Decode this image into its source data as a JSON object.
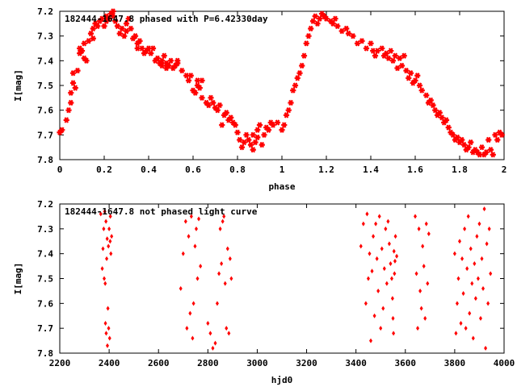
{
  "colors": {
    "points": "#ff0000",
    "axes": "#000000"
  },
  "chart_data": [
    {
      "type": "scatter",
      "title": "182444-1647.8 phased with P=6.42330day",
      "xlabel": "phase",
      "ylabel": "I[mag]",
      "xlim": [
        0,
        2
      ],
      "ylim": [
        7.2,
        7.8
      ],
      "y_inverted": true,
      "grid": false,
      "marker": "star",
      "xticks": [
        "0",
        "0.2",
        "0.4",
        "0.6",
        "0.8",
        "1",
        "1.2",
        "1.4",
        "1.6",
        "1.8",
        "2"
      ],
      "yticks": [
        "7.2",
        "7.3",
        "7.4",
        "7.5",
        "7.6",
        "7.7",
        "7.8"
      ],
      "points": [
        [
          0.0,
          7.69
        ],
        [
          0.01,
          7.68
        ],
        [
          0.03,
          7.64
        ],
        [
          0.04,
          7.6
        ],
        [
          0.05,
          7.57
        ],
        [
          0.05,
          7.53
        ],
        [
          0.06,
          7.49
        ],
        [
          0.06,
          7.45
        ],
        [
          0.07,
          7.51
        ],
        [
          0.08,
          7.44
        ],
        [
          0.09,
          7.37
        ],
        [
          0.09,
          7.35
        ],
        [
          0.1,
          7.36
        ],
        [
          0.11,
          7.33
        ],
        [
          0.11,
          7.39
        ],
        [
          0.12,
          7.4
        ],
        [
          0.13,
          7.32
        ],
        [
          0.14,
          7.29
        ],
        [
          0.15,
          7.27
        ],
        [
          0.15,
          7.31
        ],
        [
          0.16,
          7.25
        ],
        [
          0.17,
          7.26
        ],
        [
          0.18,
          7.24
        ],
        [
          0.19,
          7.23
        ],
        [
          0.2,
          7.26
        ],
        [
          0.21,
          7.24
        ],
        [
          0.21,
          7.22
        ],
        [
          0.22,
          7.23
        ],
        [
          0.23,
          7.21
        ],
        [
          0.24,
          7.22
        ],
        [
          0.24,
          7.2
        ],
        [
          0.25,
          7.24
        ],
        [
          0.26,
          7.26
        ],
        [
          0.27,
          7.29
        ],
        [
          0.28,
          7.27
        ],
        [
          0.29,
          7.3
        ],
        [
          0.3,
          7.28
        ],
        [
          0.3,
          7.25
        ],
        [
          0.31,
          7.23
        ],
        [
          0.32,
          7.27
        ],
        [
          0.33,
          7.31
        ],
        [
          0.34,
          7.3
        ],
        [
          0.35,
          7.33
        ],
        [
          0.35,
          7.35
        ],
        [
          0.36,
          7.32
        ],
        [
          0.37,
          7.35
        ],
        [
          0.38,
          7.37
        ],
        [
          0.39,
          7.36
        ],
        [
          0.4,
          7.35
        ],
        [
          0.41,
          7.37
        ],
        [
          0.42,
          7.35
        ],
        [
          0.43,
          7.4
        ],
        [
          0.44,
          7.39
        ],
        [
          0.45,
          7.41
        ],
        [
          0.46,
          7.4
        ],
        [
          0.46,
          7.42
        ],
        [
          0.47,
          7.38
        ],
        [
          0.48,
          7.41
        ],
        [
          0.48,
          7.43
        ],
        [
          0.49,
          7.42
        ],
        [
          0.5,
          7.4
        ],
        [
          0.51,
          7.43
        ],
        [
          0.52,
          7.42
        ],
        [
          0.53,
          7.4
        ],
        [
          0.53,
          7.41
        ],
        [
          0.55,
          7.44
        ],
        [
          0.57,
          7.46
        ],
        [
          0.58,
          7.48
        ],
        [
          0.59,
          7.46
        ],
        [
          0.6,
          7.52
        ],
        [
          0.61,
          7.53
        ],
        [
          0.62,
          7.5
        ],
        [
          0.62,
          7.48
        ],
        [
          0.63,
          7.51
        ],
        [
          0.64,
          7.48
        ],
        [
          0.64,
          7.55
        ],
        [
          0.66,
          7.57
        ],
        [
          0.67,
          7.58
        ],
        [
          0.68,
          7.55
        ],
        [
          0.69,
          7.57
        ],
        [
          0.7,
          7.59
        ],
        [
          0.71,
          7.6
        ],
        [
          0.72,
          7.58
        ],
        [
          0.73,
          7.66
        ],
        [
          0.74,
          7.62
        ],
        [
          0.75,
          7.61
        ],
        [
          0.76,
          7.64
        ],
        [
          0.77,
          7.63
        ],
        [
          0.78,
          7.65
        ],
        [
          0.79,
          7.66
        ],
        [
          0.8,
          7.69
        ],
        [
          0.81,
          7.72
        ],
        [
          0.82,
          7.75
        ],
        [
          0.83,
          7.73
        ],
        [
          0.84,
          7.7
        ],
        [
          0.85,
          7.72
        ],
        [
          0.86,
          7.74
        ],
        [
          0.87,
          7.7
        ],
        [
          0.87,
          7.76
        ],
        [
          0.88,
          7.73
        ],
        [
          0.89,
          7.68
        ],
        [
          0.89,
          7.71
        ],
        [
          0.9,
          7.66
        ],
        [
          0.91,
          7.74
        ],
        [
          0.92,
          7.7
        ],
        [
          0.93,
          7.67
        ],
        [
          0.94,
          7.68
        ],
        [
          0.95,
          7.65
        ],
        [
          0.96,
          7.66
        ],
        [
          0.98,
          7.65
        ],
        [
          1.0,
          7.68
        ],
        [
          1.01,
          7.66
        ],
        [
          1.02,
          7.62
        ],
        [
          1.03,
          7.6
        ],
        [
          1.04,
          7.57
        ],
        [
          1.05,
          7.52
        ],
        [
          1.06,
          7.5
        ],
        [
          1.07,
          7.47
        ],
        [
          1.08,
          7.45
        ],
        [
          1.09,
          7.42
        ],
        [
          1.1,
          7.38
        ],
        [
          1.11,
          7.33
        ],
        [
          1.12,
          7.3
        ],
        [
          1.13,
          7.27
        ],
        [
          1.14,
          7.24
        ],
        [
          1.15,
          7.22
        ],
        [
          1.16,
          7.25
        ],
        [
          1.17,
          7.23
        ],
        [
          1.18,
          7.21
        ],
        [
          1.19,
          7.22
        ],
        [
          1.2,
          7.23
        ],
        [
          1.22,
          7.24
        ],
        [
          1.23,
          7.25
        ],
        [
          1.24,
          7.23
        ],
        [
          1.25,
          7.26
        ],
        [
          1.27,
          7.28
        ],
        [
          1.29,
          7.27
        ],
        [
          1.3,
          7.29
        ],
        [
          1.32,
          7.3
        ],
        [
          1.34,
          7.33
        ],
        [
          1.36,
          7.32
        ],
        [
          1.38,
          7.35
        ],
        [
          1.4,
          7.33
        ],
        [
          1.41,
          7.36
        ],
        [
          1.42,
          7.38
        ],
        [
          1.43,
          7.36
        ],
        [
          1.45,
          7.35
        ],
        [
          1.46,
          7.38
        ],
        [
          1.47,
          7.37
        ],
        [
          1.48,
          7.39
        ],
        [
          1.49,
          7.36
        ],
        [
          1.5,
          7.4
        ],
        [
          1.51,
          7.38
        ],
        [
          1.52,
          7.43
        ],
        [
          1.53,
          7.39
        ],
        [
          1.54,
          7.42
        ],
        [
          1.55,
          7.38
        ],
        [
          1.56,
          7.44
        ],
        [
          1.57,
          7.47
        ],
        [
          1.58,
          7.45
        ],
        [
          1.59,
          7.49
        ],
        [
          1.6,
          7.48
        ],
        [
          1.61,
          7.46
        ],
        [
          1.62,
          7.5
        ],
        [
          1.63,
          7.52
        ],
        [
          1.65,
          7.54
        ],
        [
          1.66,
          7.57
        ],
        [
          1.67,
          7.56
        ],
        [
          1.68,
          7.58
        ],
        [
          1.69,
          7.6
        ],
        [
          1.7,
          7.62
        ],
        [
          1.71,
          7.61
        ],
        [
          1.72,
          7.63
        ],
        [
          1.73,
          7.65
        ],
        [
          1.74,
          7.64
        ],
        [
          1.75,
          7.67
        ],
        [
          1.76,
          7.69
        ],
        [
          1.77,
          7.7
        ],
        [
          1.78,
          7.72
        ],
        [
          1.79,
          7.71
        ],
        [
          1.8,
          7.73
        ],
        [
          1.81,
          7.72
        ],
        [
          1.82,
          7.74
        ],
        [
          1.83,
          7.76
        ],
        [
          1.84,
          7.75
        ],
        [
          1.85,
          7.73
        ],
        [
          1.86,
          7.77
        ],
        [
          1.87,
          7.76
        ],
        [
          1.88,
          7.77
        ],
        [
          1.89,
          7.78
        ],
        [
          1.9,
          7.75
        ],
        [
          1.91,
          7.78
        ],
        [
          1.92,
          7.77
        ],
        [
          1.93,
          7.72
        ],
        [
          1.94,
          7.76
        ],
        [
          1.95,
          7.78
        ],
        [
          1.96,
          7.7
        ],
        [
          1.97,
          7.72
        ],
        [
          1.98,
          7.69
        ],
        [
          1.99,
          7.7
        ]
      ]
    },
    {
      "type": "scatter",
      "title": "182444-1647.8 not phased light curve",
      "xlabel": "hjd0",
      "ylabel": "I[mag]",
      "xlim": [
        2200,
        4000
      ],
      "ylim": [
        7.2,
        7.8
      ],
      "y_inverted": true,
      "grid": false,
      "marker": "dot",
      "xticks": [
        "2200",
        "2400",
        "2600",
        "2800",
        "3000",
        "3200",
        "3400",
        "3600",
        "3800",
        "4000"
      ],
      "yticks": [
        "7.2",
        "7.3",
        "7.4",
        "7.5",
        "7.6",
        "7.7",
        "7.8"
      ],
      "points": [
        [
          2366,
          7.24
        ],
        [
          2372,
          7.46
        ],
        [
          2375,
          7.38
        ],
        [
          2378,
          7.3
        ],
        [
          2380,
          7.5
        ],
        [
          2382,
          7.23
        ],
        [
          2384,
          7.52
        ],
        [
          2385,
          7.68
        ],
        [
          2387,
          7.27
        ],
        [
          2388,
          7.72
        ],
        [
          2390,
          7.42
        ],
        [
          2392,
          7.34
        ],
        [
          2393,
          7.77
        ],
        [
          2395,
          7.62
        ],
        [
          2397,
          7.37
        ],
        [
          2398,
          7.7
        ],
        [
          2400,
          7.3
        ],
        [
          2402,
          7.74
        ],
        [
          2404,
          7.35
        ],
        [
          2405,
          7.25
        ],
        [
          2407,
          7.4
        ],
        [
          2410,
          7.33
        ],
        [
          2690,
          7.54
        ],
        [
          2700,
          7.4
        ],
        [
          2710,
          7.27
        ],
        [
          2715,
          7.7
        ],
        [
          2722,
          7.33
        ],
        [
          2728,
          7.64
        ],
        [
          2733,
          7.25
        ],
        [
          2738,
          7.74
        ],
        [
          2742,
          7.6
        ],
        [
          2748,
          7.37
        ],
        [
          2753,
          7.3
        ],
        [
          2758,
          7.5
        ],
        [
          2763,
          7.26
        ],
        [
          2770,
          7.45
        ],
        [
          2800,
          7.68
        ],
        [
          2810,
          7.72
        ],
        [
          2820,
          7.78
        ],
        [
          2830,
          7.76
        ],
        [
          2838,
          7.6
        ],
        [
          2845,
          7.48
        ],
        [
          2850,
          7.3
        ],
        [
          2855,
          7.44
        ],
        [
          2860,
          7.27
        ],
        [
          2865,
          7.25
        ],
        [
          2870,
          7.52
        ],
        [
          2875,
          7.7
        ],
        [
          2880,
          7.38
        ],
        [
          2885,
          7.72
        ],
        [
          2890,
          7.42
        ],
        [
          2895,
          7.5
        ],
        [
          3420,
          7.37
        ],
        [
          3430,
          7.28
        ],
        [
          3440,
          7.6
        ],
        [
          3445,
          7.24
        ],
        [
          3450,
          7.5
        ],
        [
          3455,
          7.4
        ],
        [
          3460,
          7.75
        ],
        [
          3465,
          7.47
        ],
        [
          3470,
          7.33
        ],
        [
          3475,
          7.65
        ],
        [
          3480,
          7.28
        ],
        [
          3485,
          7.42
        ],
        [
          3490,
          7.55
        ],
        [
          3495,
          7.25
        ],
        [
          3500,
          7.7
        ],
        [
          3505,
          7.38
        ],
        [
          3510,
          7.62
        ],
        [
          3515,
          7.46
        ],
        [
          3520,
          7.3
        ],
        [
          3525,
          7.52
        ],
        [
          3530,
          7.27
        ],
        [
          3535,
          7.36
        ],
        [
          3540,
          7.44
        ],
        [
          3545,
          7.5
        ],
        [
          3548,
          7.58
        ],
        [
          3550,
          7.66
        ],
        [
          3552,
          7.72
        ],
        [
          3554,
          7.39
        ],
        [
          3556,
          7.48
        ],
        [
          3558,
          7.43
        ],
        [
          3560,
          7.33
        ],
        [
          3565,
          7.41
        ],
        [
          3640,
          7.25
        ],
        [
          3645,
          7.48
        ],
        [
          3650,
          7.7
        ],
        [
          3655,
          7.3
        ],
        [
          3660,
          7.55
        ],
        [
          3665,
          7.62
        ],
        [
          3670,
          7.37
        ],
        [
          3675,
          7.45
        ],
        [
          3680,
          7.66
        ],
        [
          3685,
          7.28
        ],
        [
          3690,
          7.52
        ],
        [
          3695,
          7.32
        ],
        [
          3800,
          7.4
        ],
        [
          3805,
          7.72
        ],
        [
          3810,
          7.6
        ],
        [
          3815,
          7.5
        ],
        [
          3820,
          7.35
        ],
        [
          3825,
          7.68
        ],
        [
          3830,
          7.42
        ],
        [
          3835,
          7.56
        ],
        [
          3840,
          7.3
        ],
        [
          3845,
          7.7
        ],
        [
          3850,
          7.46
        ],
        [
          3855,
          7.25
        ],
        [
          3860,
          7.64
        ],
        [
          3865,
          7.38
        ],
        [
          3870,
          7.52
        ],
        [
          3875,
          7.74
        ],
        [
          3880,
          7.44
        ],
        [
          3885,
          7.58
        ],
        [
          3890,
          7.33
        ],
        [
          3895,
          7.5
        ],
        [
          3900,
          7.28
        ],
        [
          3905,
          7.66
        ],
        [
          3910,
          7.42
        ],
        [
          3915,
          7.54
        ],
        [
          3920,
          7.22
        ],
        [
          3925,
          7.78
        ],
        [
          3930,
          7.36
        ],
        [
          3935,
          7.6
        ],
        [
          3940,
          7.3
        ],
        [
          3945,
          7.48
        ]
      ]
    }
  ]
}
